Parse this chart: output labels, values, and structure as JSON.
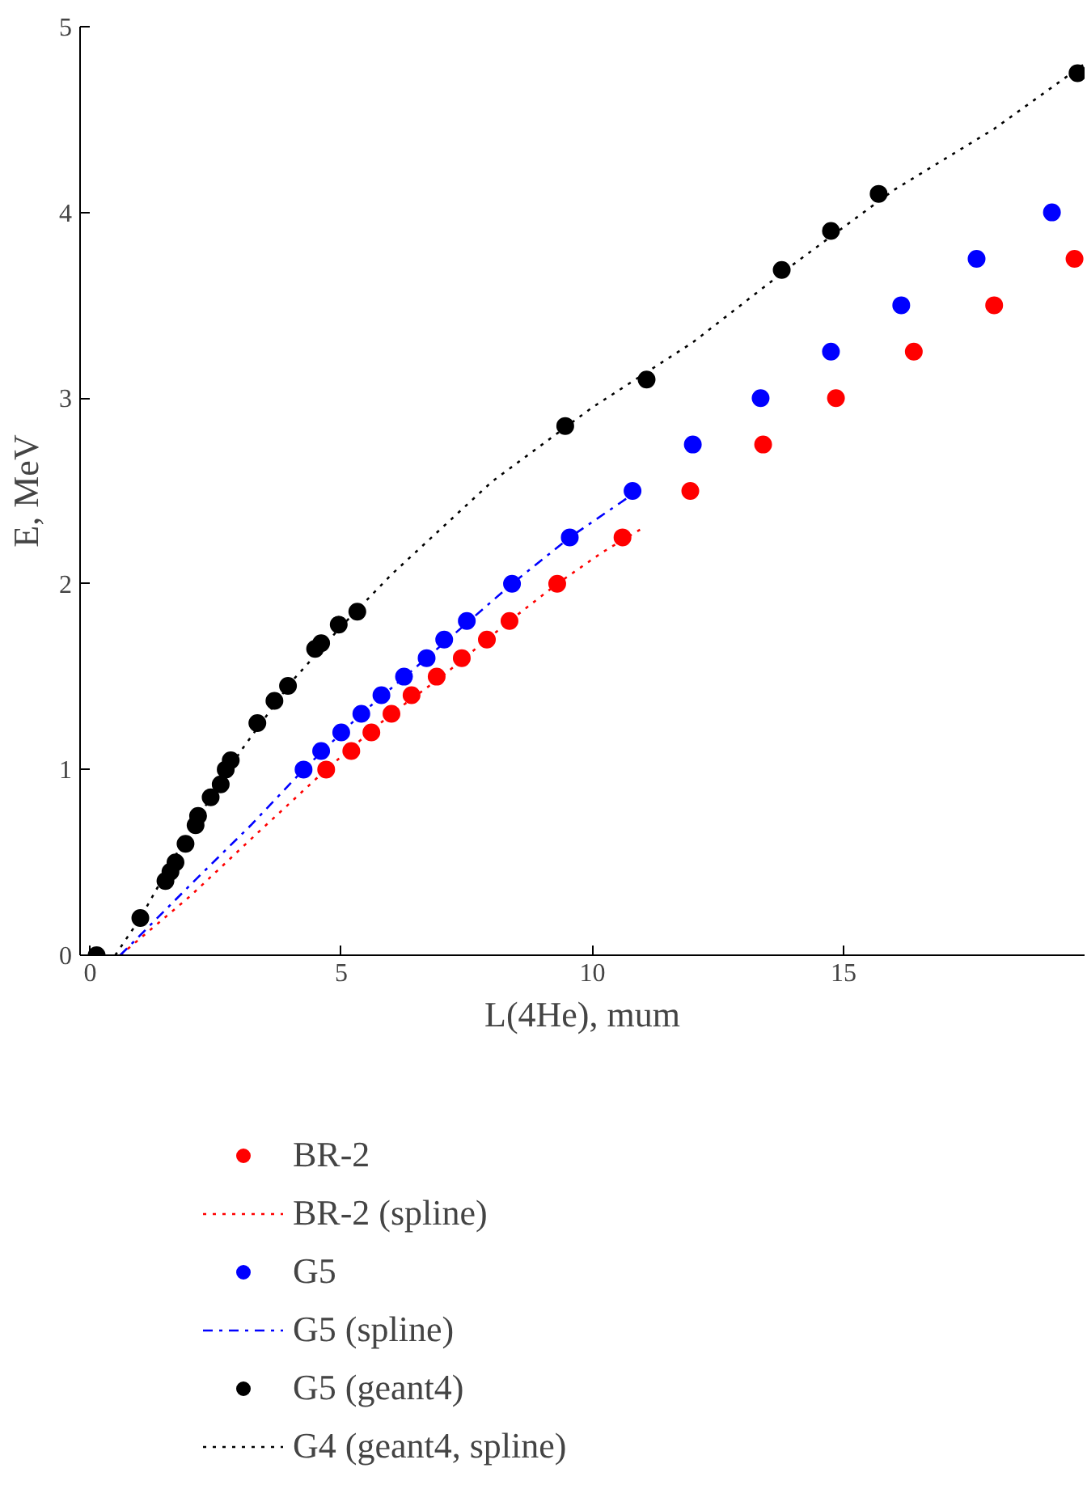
{
  "chart_data": {
    "type": "scatter",
    "xlabel": "L(4He), mum",
    "ylabel": "E, MeV",
    "xlim": [
      -0.2,
      19.8
    ],
    "ylim": [
      0,
      5
    ],
    "xticks": [
      0,
      5,
      10,
      15
    ],
    "yticks": [
      0,
      1,
      2,
      3,
      4,
      5
    ],
    "grid": false,
    "legend": "bottom left",
    "series": [
      {
        "name": "BR-2",
        "type": "scatter",
        "marker": "circle",
        "color": "#ff0000",
        "x": [
          4.7,
          5.2,
          5.6,
          6.0,
          6.4,
          6.9,
          7.4,
          7.9,
          8.35,
          9.3,
          10.6,
          11.95,
          13.4,
          14.85,
          16.4,
          18.0,
          19.6
        ],
        "values": [
          1.0,
          1.1,
          1.2,
          1.3,
          1.4,
          1.5,
          1.6,
          1.7,
          1.8,
          2.0,
          2.25,
          2.5,
          2.75,
          3.0,
          3.25,
          3.5,
          3.75
        ]
      },
      {
        "name": "BR-2 (spline)",
        "type": "line",
        "line_style": "dotted",
        "color": "#ff0000",
        "x": [
          0.6,
          2.0,
          3.3,
          4.7,
          6.0,
          7.0,
          8.35,
          9.3,
          10.2,
          11.0
        ],
        "values": [
          0.0,
          0.32,
          0.65,
          1.0,
          1.3,
          1.5,
          1.8,
          2.0,
          2.17,
          2.3
        ]
      },
      {
        "name": "G5",
        "type": "scatter",
        "marker": "circle",
        "color": "#0000ff",
        "x": [
          4.25,
          4.6,
          5.0,
          5.4,
          5.8,
          6.25,
          6.7,
          7.05,
          7.5,
          8.4,
          9.55,
          10.8,
          12.0,
          13.35,
          14.75,
          16.15,
          17.65,
          19.15
        ],
        "values": [
          1.0,
          1.1,
          1.2,
          1.3,
          1.4,
          1.5,
          1.6,
          1.7,
          1.8,
          2.0,
          2.25,
          2.5,
          2.75,
          3.0,
          3.25,
          3.5,
          3.75,
          4.0
        ]
      },
      {
        "name": "G5 (spline)",
        "type": "line",
        "line_style": "dashdot",
        "color": "#0000ff",
        "x": [
          0.6,
          2.0,
          3.2,
          4.25,
          5.4,
          6.7,
          8.4,
          9.55,
          10.9
        ],
        "values": [
          0.0,
          0.38,
          0.7,
          1.0,
          1.3,
          1.6,
          2.0,
          2.25,
          2.5
        ]
      },
      {
        "name": "G5 (geant4)",
        "type": "scatter",
        "marker": "circle",
        "color": "#000000",
        "x": [
          0.13,
          1.0,
          1.5,
          1.6,
          1.7,
          1.9,
          2.1,
          2.15,
          2.4,
          2.6,
          2.7,
          2.8,
          3.33,
          3.67,
          3.94,
          4.48,
          4.6,
          4.95,
          5.32,
          9.46,
          11.08,
          13.77,
          14.75,
          15.7,
          19.66
        ],
        "values": [
          0.0,
          0.2,
          0.4,
          0.45,
          0.5,
          0.6,
          0.7,
          0.75,
          0.85,
          0.92,
          1.0,
          1.05,
          1.25,
          1.37,
          1.45,
          1.65,
          1.68,
          1.78,
          1.85,
          2.85,
          3.1,
          3.69,
          3.9,
          4.1,
          4.75
        ]
      },
      {
        "name": "G4 (geant4, spline)",
        "type": "line",
        "line_style": "dotted",
        "color": "#000000",
        "x": [
          0.5,
          1.0,
          2.0,
          3.0,
          4.0,
          5.0,
          6.0,
          8.0,
          10.0,
          12.0,
          14.0,
          16.0,
          18.0,
          19.8
        ],
        "values": [
          0.0,
          0.2,
          0.68,
          1.1,
          1.47,
          1.77,
          2.05,
          2.55,
          2.95,
          3.3,
          3.72,
          4.12,
          4.45,
          4.8
        ]
      }
    ]
  }
}
